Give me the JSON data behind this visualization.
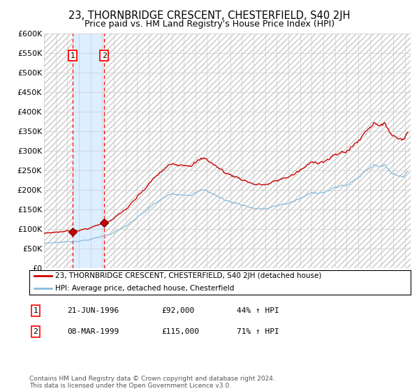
{
  "title": "23, THORNBRIDGE CRESCENT, CHESTERFIELD, S40 2JH",
  "subtitle": "Price paid vs. HM Land Registry's House Price Index (HPI)",
  "title_fontsize": 10.5,
  "subtitle_fontsize": 9.0,
  "background_color": "#ffffff",
  "grid_color": "#cccccc",
  "sale1_date": 1996.47,
  "sale1_price": 92000,
  "sale2_date": 1999.18,
  "sale2_price": 115000,
  "xmin": 1994.0,
  "xmax": 2025.5,
  "ymin": 0,
  "ymax": 600000,
  "ytick_vals": [
    0,
    50000,
    100000,
    150000,
    200000,
    250000,
    300000,
    350000,
    400000,
    450000,
    500000,
    550000,
    600000
  ],
  "ytick_labels": [
    "£0",
    "£50K",
    "£100K",
    "£150K",
    "£200K",
    "£250K",
    "£300K",
    "£350K",
    "£400K",
    "£450K",
    "£500K",
    "£550K",
    "£600K"
  ],
  "red_color": "#cc0000",
  "blue_color": "#88bbdd",
  "shaded_color": "#ddeeff",
  "hatch_color": "#c8c8c8",
  "legend_line1": "23, THORNBRIDGE CRESCENT, CHESTERFIELD, S40 2JH (detached house)",
  "legend_line2": "HPI: Average price, detached house, Chesterfield",
  "table_rows": [
    [
      "1",
      "21-JUN-1996",
      "£92,000",
      "44% ↑ HPI"
    ],
    [
      "2",
      "08-MAR-1999",
      "£115,000",
      "71% ↑ HPI"
    ]
  ],
  "footer": "Contains HM Land Registry data © Crown copyright and database right 2024.\nThis data is licensed under the Open Government Licence v3.0."
}
